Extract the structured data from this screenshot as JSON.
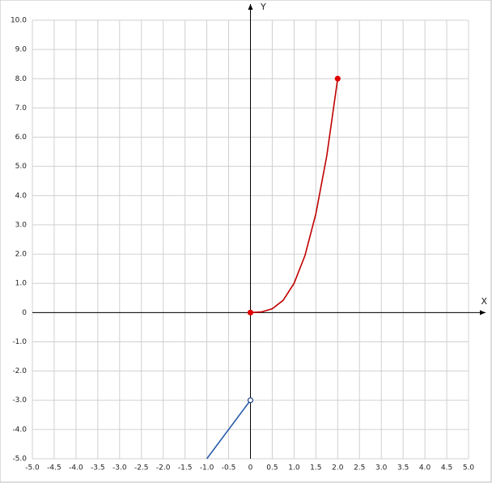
{
  "chart_data": {
    "type": "line",
    "x_label": "X",
    "y_label": "Y",
    "xlim": [
      -5,
      5
    ],
    "ylim": [
      -5,
      10
    ],
    "grid": true,
    "xticks": [
      {
        "value": -5,
        "label": "-5.0"
      },
      -4.5,
      {
        "value": -4,
        "label": "-4.0"
      },
      -3.5,
      {
        "value": -3,
        "label": "-3.0"
      },
      -2.5,
      {
        "value": -2,
        "label": "-2.0"
      },
      -1.5,
      {
        "value": -1,
        "label": "-1.0"
      },
      -0.5,
      0,
      0.5,
      {
        "value": 1,
        "label": "1.0"
      },
      1.5,
      {
        "value": 2,
        "label": "2.0"
      },
      2.5,
      {
        "value": 3,
        "label": "3.0"
      },
      3.5,
      {
        "value": 4,
        "label": "4.0"
      },
      4.5,
      {
        "value": 5,
        "label": "5.0"
      }
    ],
    "yticks": [
      {
        "value": -5,
        "label": "-5.0"
      },
      {
        "value": -4,
        "label": "-4.0"
      },
      {
        "value": -3,
        "label": "-3.0"
      },
      {
        "value": -2,
        "label": "-2.0"
      },
      {
        "value": -1,
        "label": "-1.0"
      },
      0,
      {
        "value": 1,
        "label": "1.0"
      },
      {
        "value": 2,
        "label": "2.0"
      },
      {
        "value": 3,
        "label": "3.0"
      },
      {
        "value": 4,
        "label": "4.0"
      },
      {
        "value": 5,
        "label": "5.0"
      },
      {
        "value": 6,
        "label": "6.0"
      },
      {
        "value": 7,
        "label": "7.0"
      },
      {
        "value": 8,
        "label": "8.0"
      },
      {
        "value": 9,
        "label": "9.0"
      },
      {
        "value": 10,
        "label": "10.0"
      }
    ],
    "series": [
      {
        "color": "#c00000",
        "x": [
          0,
          0.25,
          0.5,
          0.75,
          1,
          1.25,
          1.5,
          1.75,
          2
        ],
        "values": [
          0,
          0.02,
          0.13,
          0.42,
          1,
          1.95,
          3.38,
          5.36,
          8
        ]
      },
      {
        "color": "#2a5caa",
        "x": [
          -1,
          0
        ],
        "values": [
          -5,
          -3
        ]
      }
    ],
    "markers": [
      {
        "x": 0,
        "y": 0,
        "color": "#e00000",
        "filled": true
      },
      {
        "x": 2,
        "y": 8,
        "color": "#e00000",
        "filled": true
      },
      {
        "x": 0,
        "y": -3,
        "color": "#1a3f8a",
        "filled": false
      }
    ]
  }
}
